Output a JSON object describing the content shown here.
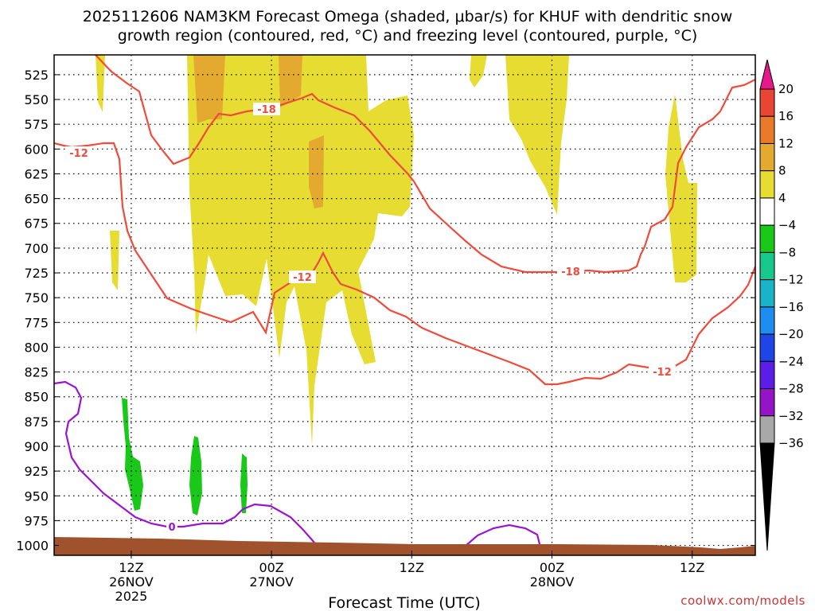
{
  "title_line1": "2025112606 NAM3KM Forecast Omega (shaded, μbar/s) for KHUF with dendritic snow",
  "title_line2": "growth region (contoured, red, °C) and freezing level (contoured, purple, °C)",
  "credit": "coolwx.com/models",
  "chart_data": {
    "type": "heatmap",
    "title": "2025112606 NAM3KM Forecast Omega (shaded, μbar/s) for KHUF with dendritic snow growth region (contoured, red, °C) and freezing level (contoured, purple, °C)",
    "xlabel": "Forecast Time (UTC)",
    "ylabel": "",
    "x_range_hours": [
      6.5,
      56.5
    ],
    "y_axis": {
      "unit": "hPa",
      "range": [
        1010,
        505
      ],
      "ticks": [
        525,
        550,
        575,
        600,
        625,
        650,
        675,
        700,
        725,
        750,
        775,
        800,
        825,
        850,
        875,
        900,
        925,
        950,
        975,
        1000
      ]
    },
    "x_ticks": [
      {
        "hour": 12,
        "line1": "12Z",
        "line2": "26NOV",
        "line3": "2025"
      },
      {
        "hour": 22,
        "line1": "00Z",
        "line2": "27NOV",
        "line3": ""
      },
      {
        "hour": 32,
        "line1": "12Z",
        "line2": "",
        "line3": ""
      },
      {
        "hour": 42,
        "line1": "00Z",
        "line2": "28NOV",
        "line3": ""
      },
      {
        "hour": 52,
        "line1": "12Z",
        "line2": "",
        "line3": ""
      }
    ],
    "grid": "dotted",
    "colorbar": {
      "labels": [
        "20",
        "16",
        "12",
        "8",
        "4",
        "−4",
        "−8",
        "−12",
        "−16",
        "−20",
        "−24",
        "−28",
        "−32",
        "−36"
      ],
      "colors": [
        "#e6198c",
        "#e84535",
        "#e87a2a",
        "#e3aa2f",
        "#e6dc32",
        "#ffffff",
        "#19c819",
        "#19c88c",
        "#19b4c8",
        "#1e8cf0",
        "#1e46e6",
        "#5a1ee6",
        "#9614c8",
        "#a8a8a8",
        "#000000"
      ]
    },
    "contours": [
      {
        "label": "-18",
        "color": "#f04a3a"
      },
      {
        "label": "-12",
        "color": "#f04a3a"
      },
      {
        "label": "0",
        "color": "#9914d2"
      }
    ],
    "terrain_color": "#a0522d"
  }
}
